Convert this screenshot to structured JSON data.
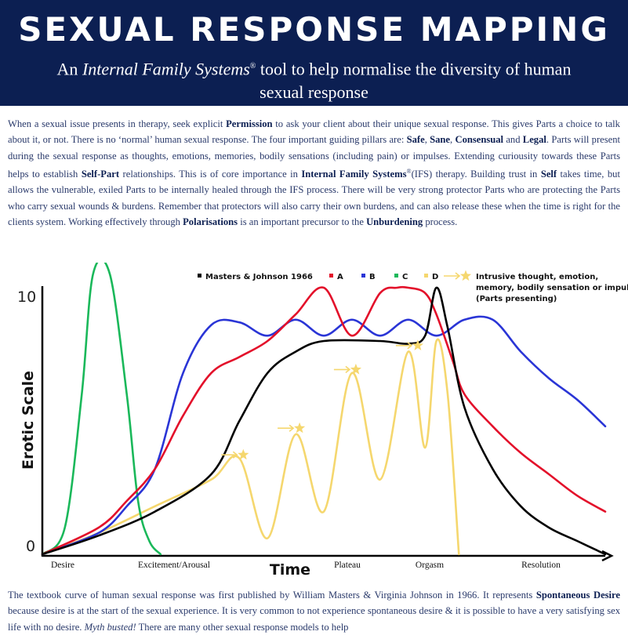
{
  "header": {
    "title": "SEXUAL RESPONSE MAPPING",
    "subtitle_pre": "An ",
    "subtitle_italic": "Internal Family Systems",
    "subtitle_sup": "®",
    "subtitle_post": " tool to help normalise the diversity of human sexual response"
  },
  "intro": {
    "t1": "When a sexual issue presents in therapy, seek explicit ",
    "b1": "Permission",
    "t2": " to ask your client about their unique sexual response. This gives Parts a choice to talk about it, or not. There is no ‘normal’ human sexual response. The four important guiding pillars are: ",
    "b2": "Safe",
    "t3": ", ",
    "b3": "Sane",
    "t4": ", ",
    "b4": "Consensual",
    "t5": " and ",
    "b5": "Legal",
    "t6": ". Parts will present during the sexual response as thoughts, emotions, memories, bodily sensations (including pain) or impulses. Extending curiousity towards these Parts helps to establish ",
    "b6": "Self-Part",
    "t7": " relationships. This is of core importance in ",
    "b7": "Internal Family Systems",
    "sup": "®",
    "t8": "(IFS) therapy. Building trust in ",
    "b8": "Self",
    "t9": " takes time, but allows the vulnerable, exiled Parts to be internally healed through the IFS process. There will be very strong protector Parts who are protecting the Parts who carry sexual wounds & burdens. Remember that protectors will also carry their own burdens, and can also release these when the time is right for the clients system. Working effectively through ",
    "b9": "Polarisations",
    "t10": " is an important precursor to the ",
    "b10": "Unburdening",
    "t11": " process."
  },
  "outro": {
    "t1": "The textbook curve of human sexual response was first published by William Masters & Virginia Johnson in 1966. It represents ",
    "b1": "Spontaneous Desire",
    "t2": " because desire is at the start of the sexual experience. It is very common to not experience spontaneous desire & it is possible to have a very satisfying sex life with no desire. ",
    "i1": "Myth busted!",
    "t3": " There are many other sexual response models to help"
  },
  "chart_data": {
    "type": "line",
    "ylabel": "Erotic Scale",
    "xlabel": "Time",
    "y_ticks": [
      "10",
      "0"
    ],
    "ylim": [
      0,
      10
    ],
    "categories": [
      "Desire",
      "Excitement/Arousal",
      "Plateau",
      "Orgasm",
      "Resolution"
    ],
    "legend": [
      {
        "name": "Masters & Johnson 1966",
        "color": "#000000"
      },
      {
        "name": "A",
        "color": "#e3102a"
      },
      {
        "name": "B",
        "color": "#2a35d6"
      },
      {
        "name": "C",
        "color": "#1ab85a"
      },
      {
        "name": "D",
        "color": "#f5d76e"
      },
      {
        "name": "Intrusive thought, emotion, memory, bodily sensation or impulse (Parts presenting)",
        "color": "#f5d76e"
      }
    ],
    "legend_placement": "top",
    "grid": false,
    "series": [
      {
        "name": "Masters & Johnson 1966",
        "color": "#000000",
        "x": [
          0,
          0.1,
          0.2,
          0.3,
          0.35,
          0.4,
          0.45,
          0.5,
          0.6,
          0.65,
          0.68,
          0.7,
          0.72,
          0.75,
          0.8,
          0.85,
          0.9,
          0.95,
          1.0
        ],
        "y": [
          0,
          0.7,
          1.6,
          3.0,
          5.0,
          6.8,
          7.6,
          8.0,
          8.0,
          7.9,
          8.2,
          10.0,
          8.5,
          5.5,
          3.2,
          1.8,
          1.0,
          0.5,
          0
        ]
      },
      {
        "name": "A",
        "color": "#e3102a",
        "x": [
          0,
          0.1,
          0.15,
          0.2,
          0.25,
          0.3,
          0.35,
          0.4,
          0.45,
          0.5,
          0.55,
          0.6,
          0.63,
          0.65,
          0.68,
          0.7,
          0.73,
          0.75,
          0.8,
          0.85,
          0.9,
          0.95,
          1.0
        ],
        "y": [
          0,
          1.0,
          2.0,
          3.2,
          5.2,
          6.8,
          7.4,
          8.0,
          9.0,
          10.0,
          8.2,
          9.8,
          10.0,
          10.0,
          9.8,
          9.0,
          7.2,
          6.0,
          4.8,
          3.8,
          3.0,
          2.2,
          1.6
        ]
      },
      {
        "name": "B",
        "color": "#2a35d6",
        "x": [
          0,
          0.1,
          0.15,
          0.2,
          0.25,
          0.3,
          0.35,
          0.4,
          0.45,
          0.5,
          0.55,
          0.6,
          0.65,
          0.7,
          0.75,
          0.8,
          0.85,
          0.9,
          0.95,
          1.0
        ],
        "y": [
          0,
          0.8,
          1.8,
          3.2,
          6.8,
          8.6,
          8.7,
          8.2,
          8.8,
          8.2,
          8.8,
          8.2,
          8.8,
          8.2,
          8.8,
          8.8,
          7.6,
          6.6,
          5.8,
          4.8
        ]
      },
      {
        "name": "C",
        "color": "#1ab85a",
        "x": [
          0,
          0.04,
          0.07,
          0.09,
          0.12,
          0.15,
          0.17,
          0.19,
          0.21
        ],
        "y": [
          0,
          1.0,
          6.0,
          10.5,
          10.5,
          6.0,
          2.0,
          0.5,
          0
        ]
      },
      {
        "name": "D",
        "color": "#f5d76e",
        "x": [
          0,
          0.1,
          0.2,
          0.3,
          0.35,
          0.4,
          0.45,
          0.5,
          0.55,
          0.6,
          0.65,
          0.68,
          0.7,
          0.72,
          0.74
        ],
        "y": [
          0,
          0.8,
          1.8,
          2.8,
          3.6,
          0.6,
          4.5,
          1.6,
          6.8,
          2.8,
          7.6,
          4.0,
          8.0,
          6.0,
          0
        ]
      }
    ],
    "star_markers": [
      {
        "x": 0.35,
        "y": 3.7
      },
      {
        "x": 0.45,
        "y": 4.7
      },
      {
        "x": 0.55,
        "y": 6.9
      },
      {
        "x": 0.66,
        "y": 7.8
      }
    ]
  }
}
